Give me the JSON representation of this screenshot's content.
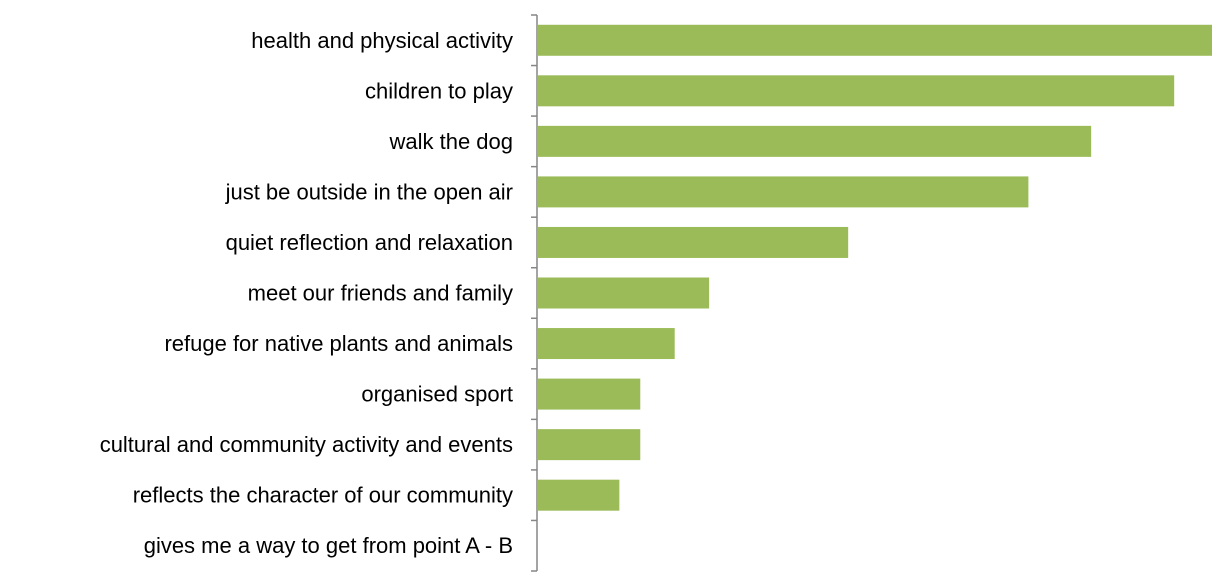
{
  "chart_data": {
    "type": "bar",
    "orientation": "horizontal",
    "categories": [
      "health and physical activity",
      "children to play",
      "walk the dog",
      "just be outside in the open air",
      "quiet reflection and relaxation",
      "meet our friends and family",
      "refuge for native plants and animals",
      "organised sport",
      "cultural and community activity and events",
      "reflects the character of our community",
      "gives me a way to get from point A - B"
    ],
    "values": [
      100,
      94.4,
      82.1,
      72.8,
      46.1,
      25.5,
      20.4,
      15.3,
      15.3,
      12.2,
      0
    ],
    "xlim": [
      0,
      100
    ],
    "grid": false,
    "legend": "none",
    "colors": {
      "bar": "#9BBB59",
      "axis": "#868686",
      "text": "#000000"
    }
  }
}
